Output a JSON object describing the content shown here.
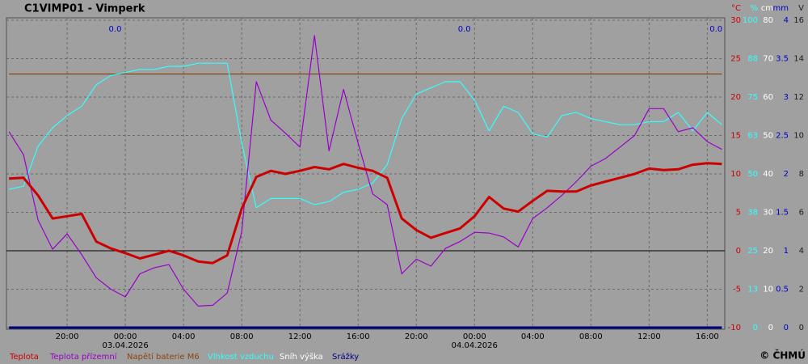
{
  "chart_data": {
    "type": "line",
    "title": "C1VIMP01 - Vimperk",
    "credit": "© ČHMÚ",
    "grid": true,
    "xlim": [
      -8.17,
      41.2
    ],
    "xticks": [
      {
        "value": -4,
        "label": "20:00"
      },
      {
        "value": 0,
        "label": "00:00"
      },
      {
        "value": 4,
        "label": "04:00"
      },
      {
        "value": 8,
        "label": "08:00"
      },
      {
        "value": 12,
        "label": "12:00"
      },
      {
        "value": 16,
        "label": "16:00"
      },
      {
        "value": 20,
        "label": "20:00"
      },
      {
        "value": 24,
        "label": "00:00"
      },
      {
        "value": 28,
        "label": "04:00"
      },
      {
        "value": 32,
        "label": "08:00"
      },
      {
        "value": 36,
        "label": "12:00"
      },
      {
        "value": 40,
        "label": "16:00"
      }
    ],
    "date_labels": [
      {
        "value": 0,
        "label": "03.04.2026"
      },
      {
        "value": 24,
        "label": "04.04.2026"
      }
    ],
    "axes": [
      {
        "unit": "°C",
        "color": "#cc0000",
        "lim": [
          -10,
          30
        ],
        "ticks": [
          -10,
          -5,
          0,
          5,
          10,
          15,
          20,
          25,
          30
        ]
      },
      {
        "unit": "%",
        "color": "#33ffff",
        "lim": [
          0,
          100
        ],
        "ticks": [
          0,
          {
            "value": 12.5,
            "label": "13"
          },
          25,
          {
            "value": 37.5,
            "label": "38"
          },
          50,
          {
            "value": 62.5,
            "label": "63"
          },
          75,
          {
            "value": 87.5,
            "label": "88"
          },
          100
        ]
      },
      {
        "unit": "cm",
        "color": "#ffffff",
        "lim": [
          0,
          80
        ],
        "ticks": [
          0,
          10,
          20,
          30,
          40,
          50,
          60,
          70,
          80
        ]
      },
      {
        "unit": "mm",
        "color": "#0000cc",
        "lim": [
          0,
          4
        ],
        "ticks": [
          0,
          0.5,
          1,
          1.5,
          2,
          2.5,
          3,
          3.5,
          4
        ]
      },
      {
        "unit": "V",
        "color": "#202020",
        "lim": [
          0,
          16
        ],
        "ticks": [
          0,
          2,
          4,
          6,
          8,
          10,
          12,
          14,
          16
        ]
      }
    ],
    "reference_lines": [
      {
        "axis": 0,
        "value": 0,
        "color": "#000000"
      }
    ],
    "annotations": [
      {
        "x": -0.7,
        "label": "0.0"
      },
      {
        "x": 23.3,
        "label": "0.0"
      },
      {
        "x": 40.6,
        "label": "0.0"
      }
    ],
    "x": [
      -8,
      -7,
      -6,
      -5,
      -4,
      -3,
      -2,
      -1,
      0,
      1,
      2,
      3,
      4,
      5,
      6,
      7,
      8,
      9,
      10,
      11,
      12,
      13,
      14,
      15,
      16,
      17,
      18,
      19,
      20,
      21,
      22,
      23,
      24,
      25,
      26,
      27,
      28,
      29,
      30,
      31,
      32,
      33,
      34,
      35,
      36,
      37,
      38,
      39,
      40,
      41
    ],
    "series": [
      {
        "name": "Sníh výška",
        "color": "#ffffff",
        "axis": 2,
        "width": 1.2,
        "values": [
          0,
          0,
          0,
          0,
          0,
          0,
          0,
          0,
          0,
          0,
          0,
          0,
          0,
          0,
          0,
          0,
          0,
          0,
          0,
          0,
          0,
          0,
          0,
          0,
          0,
          0,
          0,
          0,
          0,
          0,
          0,
          0,
          0,
          0,
          0,
          0,
          0,
          0,
          0,
          0,
          0,
          0,
          0,
          0,
          0,
          0,
          0,
          0,
          0,
          0
        ]
      },
      {
        "name": "Srážky",
        "color": "#000080",
        "axis": 3,
        "width": 3,
        "values": [
          0,
          0,
          0,
          0,
          0,
          0,
          0,
          0,
          0,
          0,
          0,
          0,
          0,
          0,
          0,
          0,
          0,
          0,
          0,
          0,
          0,
          0,
          0,
          0,
          0,
          0,
          0,
          0,
          0,
          0,
          0,
          0,
          0,
          0,
          0,
          0,
          0,
          0,
          0,
          0,
          0,
          0,
          0,
          0,
          0,
          0,
          0,
          0,
          0,
          0
        ]
      },
      {
        "name": "Napětí baterie M6",
        "color": "#8b4513",
        "axis": 4,
        "width": 1.2,
        "values": [
          13.2,
          13.2,
          13.2,
          13.2,
          13.2,
          13.2,
          13.2,
          13.2,
          13.2,
          13.2,
          13.2,
          13.2,
          13.2,
          13.2,
          13.2,
          13.2,
          13.2,
          13.2,
          13.2,
          13.2,
          13.2,
          13.2,
          13.2,
          13.2,
          13.2,
          13.2,
          13.2,
          13.2,
          13.2,
          13.2,
          13.2,
          13.2,
          13.2,
          13.2,
          13.2,
          13.2,
          13.2,
          13.2,
          13.2,
          13.2,
          13.2,
          13.2,
          13.2,
          13.2,
          13.2,
          13.2,
          13.2,
          13.2,
          13.2,
          13.2
        ]
      },
      {
        "name": "Vlhkost vzduchu",
        "color": "#33ffff",
        "axis": 1,
        "width": 1.2,
        "values": [
          45,
          46,
          59,
          65,
          69,
          72,
          79,
          82,
          83,
          84,
          84,
          85,
          85,
          86,
          86,
          86,
          60,
          39,
          42,
          42,
          42,
          40,
          41,
          44,
          45,
          47,
          53,
          68,
          76,
          78,
          80,
          80,
          74,
          64,
          72,
          70,
          63,
          62,
          69,
          70,
          68,
          67,
          66,
          66,
          67,
          67,
          70,
          64,
          70,
          66
        ]
      },
      {
        "name": "Teplota přízemní",
        "color": "#9900cc",
        "axis": 0,
        "width": 1.2,
        "values": [
          15.5,
          12.5,
          4,
          0.2,
          2.2,
          -0.5,
          -3.5,
          -5,
          -6,
          -3,
          -2.2,
          -1.8,
          -5,
          -7.2,
          -7.1,
          -5.5,
          2.5,
          22,
          17,
          15.3,
          13.5,
          28,
          13,
          21,
          14,
          7.4,
          6,
          -3,
          -1.1,
          -2,
          0.3,
          1.2,
          2.4,
          2.3,
          1.8,
          0.5,
          4.2,
          5.6,
          7.2,
          9,
          11,
          12,
          13.5,
          15,
          18.5,
          18.5,
          15.5,
          16,
          14.2,
          13.2
        ]
      },
      {
        "name": "Teplota",
        "color": "#cc0000",
        "axis": 0,
        "width": 3,
        "values": [
          9.4,
          9.5,
          7.2,
          4.2,
          4.5,
          4.8,
          1.2,
          0.3,
          -0.3,
          -1,
          -0.5,
          0,
          -0.6,
          -1.4,
          -1.6,
          -0.6,
          5.5,
          9.6,
          10.4,
          10,
          10.4,
          10.9,
          10.6,
          11.3,
          10.8,
          10.4,
          9.5,
          4.2,
          2.7,
          1.7,
          2.3,
          2.9,
          4.5,
          7,
          5.5,
          5.1,
          6.5,
          7.8,
          7.7,
          7.7,
          8.5,
          9,
          9.5,
          10,
          10.7,
          10.5,
          10.6,
          11.2,
          11.4,
          11.3
        ]
      }
    ],
    "legend_order": [
      5,
      4,
      2,
      3,
      0,
      1
    ]
  }
}
